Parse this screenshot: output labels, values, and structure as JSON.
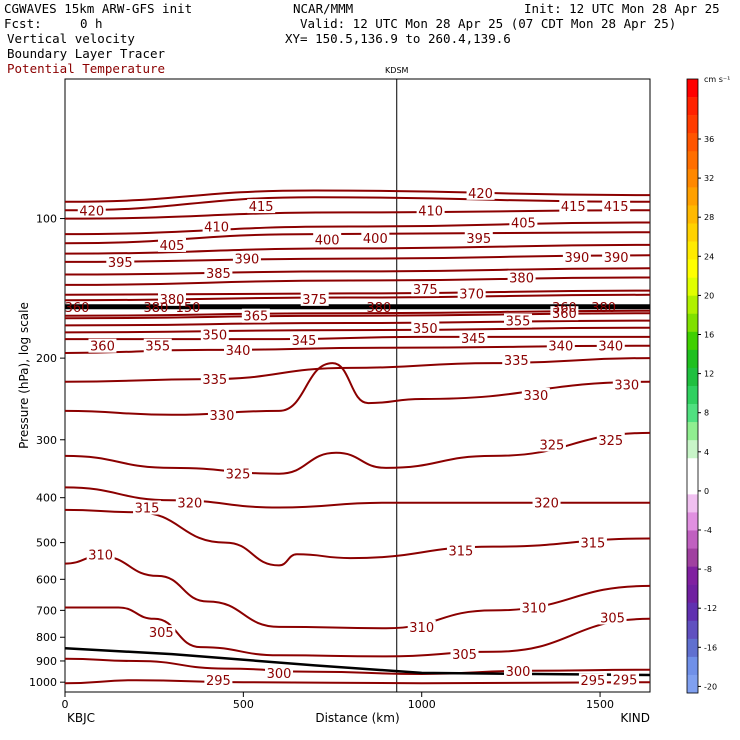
{
  "header": {
    "model": "CGWAVES 15km ARW-GFS init",
    "org": "NCAR/MMM",
    "init": "Init: 12 UTC Mon 28 Apr 25",
    "fcst_label": "Fcst:",
    "fcst_value": "0 h",
    "valid": "Valid: 12 UTC Mon 28 Apr 25 (07 CDT Mon 28 Apr 25)",
    "field1": "Vertical velocity",
    "field2": "Boundary Layer Tracer",
    "field3": "Potential Temperature",
    "xy": "XY= 150.5,136.9 to 260.4,139.6",
    "field3_color": "#8b0000"
  },
  "chart_data": {
    "type": "cross-section",
    "title": "",
    "xlabel": "Distance (km)",
    "ylabel": "Pressure (hPa), log scale",
    "xlim": [
      0,
      1640
    ],
    "ylim": [
      1050,
      50
    ],
    "y_scale": "log",
    "x_ticks": [
      0,
      500,
      1000,
      1500
    ],
    "y_ticks": [
      100,
      200,
      300,
      400,
      500,
      600,
      700,
      800,
      900,
      1000
    ],
    "station_start": "KBJC",
    "station_end": "KIND",
    "station_marker": {
      "name": "KDSM",
      "x": 930
    },
    "contour_color": "#8b0000",
    "contours": [
      {
        "level": 295,
        "labels": [
          [
            430,
            990
          ],
          [
            1480,
            990
          ],
          [
            1570,
            988
          ]
        ],
        "points": [
          [
            0,
            1005
          ],
          [
            200,
            990
          ],
          [
            500,
            1000
          ],
          [
            1000,
            1005
          ],
          [
            1640,
            1000
          ]
        ]
      },
      {
        "level": 300,
        "labels": [
          [
            600,
            955
          ],
          [
            1270,
            945
          ]
        ],
        "points": [
          [
            0,
            890
          ],
          [
            200,
            900
          ],
          [
            450,
            935
          ],
          [
            700,
            950
          ],
          [
            1000,
            960
          ],
          [
            1300,
            945
          ],
          [
            1640,
            940
          ]
        ]
      },
      {
        "level": 305,
        "labels": [
          [
            270,
            780
          ],
          [
            1120,
            870
          ],
          [
            1535,
            725
          ]
        ],
        "points": [
          [
            0,
            690
          ],
          [
            150,
            690
          ],
          [
            250,
            730
          ],
          [
            380,
            840
          ],
          [
            600,
            875
          ],
          [
            900,
            880
          ],
          [
            1200,
            860
          ],
          [
            1640,
            730
          ]
        ]
      },
      {
        "level": 310,
        "labels": [
          [
            100,
            530
          ],
          [
            1000,
            760
          ],
          [
            1315,
            690
          ]
        ],
        "points": [
          [
            0,
            555
          ],
          [
            100,
            535
          ],
          [
            260,
            590
          ],
          [
            400,
            670
          ],
          [
            600,
            760
          ],
          [
            900,
            765
          ],
          [
            1200,
            700
          ],
          [
            1640,
            620
          ]
        ]
      },
      {
        "level": 315,
        "labels": [
          [
            230,
            420
          ],
          [
            1110,
            520
          ],
          [
            1480,
            500
          ]
        ],
        "points": [
          [
            0,
            425
          ],
          [
            200,
            430
          ],
          [
            450,
            500
          ],
          [
            600,
            560
          ],
          [
            650,
            530
          ],
          [
            800,
            540
          ],
          [
            1200,
            510
          ],
          [
            1640,
            490
          ]
        ]
      },
      {
        "level": 320,
        "labels": [
          [
            350,
            410
          ],
          [
            1350,
            410
          ]
        ],
        "points": [
          [
            0,
            380
          ],
          [
            300,
            405
          ],
          [
            600,
            420
          ],
          [
            900,
            410
          ],
          [
            1640,
            410
          ]
        ]
      },
      {
        "level": 325,
        "labels": [
          [
            485,
            355
          ],
          [
            1365,
            307
          ],
          [
            1530,
            300
          ]
        ],
        "points": [
          [
            0,
            325
          ],
          [
            300,
            345
          ],
          [
            600,
            355
          ],
          [
            760,
            320
          ],
          [
            900,
            345
          ],
          [
            1200,
            325
          ],
          [
            1640,
            290
          ]
        ]
      },
      {
        "level": 330,
        "labels": [
          [
            440,
            265
          ],
          [
            1320,
            240
          ],
          [
            1575,
            228
          ]
        ],
        "points": [
          [
            0,
            260
          ],
          [
            300,
            265
          ],
          [
            600,
            260
          ],
          [
            750,
            205
          ],
          [
            850,
            250
          ],
          [
            1000,
            245
          ],
          [
            1640,
            225
          ]
        ]
      },
      {
        "level": 335,
        "labels": [
          [
            420,
            222
          ],
          [
            1265,
            202
          ]
        ],
        "points": [
          [
            0,
            225
          ],
          [
            400,
            222
          ],
          [
            800,
            210
          ],
          [
            1200,
            205
          ],
          [
            1640,
            200
          ]
        ]
      },
      {
        "level": 340,
        "labels": [
          [
            485,
            192
          ],
          [
            1390,
            188
          ],
          [
            1530,
            188
          ]
        ],
        "points": [
          [
            0,
            195
          ],
          [
            400,
            192
          ],
          [
            900,
            190
          ],
          [
            1640,
            188
          ]
        ]
      },
      {
        "level": 345,
        "labels": [
          [
            670,
            183
          ],
          [
            1145,
            181
          ]
        ],
        "points": [
          [
            0,
            182
          ],
          [
            600,
            182
          ],
          [
            1000,
            180
          ],
          [
            1640,
            180
          ]
        ]
      },
      {
        "level": 350,
        "labels": [
          [
            420,
            178
          ],
          [
            1010,
            172
          ]
        ],
        "points": [
          [
            0,
            176
          ],
          [
            800,
            174
          ],
          [
            1640,
            172
          ]
        ]
      },
      {
        "level": 355,
        "labels": [
          [
            260,
            188
          ],
          [
            1270,
            166
          ]
        ],
        "points": [
          [
            0,
            170
          ],
          [
            800,
            168
          ],
          [
            1640,
            166
          ]
        ]
      },
      {
        "level": 360,
        "labels": [
          [
            105,
            188
          ],
          [
            1400,
            160
          ]
        ],
        "points": [
          [
            0,
            164
          ],
          [
            800,
            162
          ],
          [
            1640,
            160
          ]
        ]
      },
      {
        "level": 365,
        "labels": [
          [
            535,
            162
          ]
        ],
        "points": [
          [
            0,
            162
          ],
          [
            800,
            160
          ],
          [
            1640,
            158
          ]
        ]
      },
      {
        "level": 370,
        "labels": [
          [
            1140,
            145
          ]
        ],
        "points": [
          [
            0,
            150
          ],
          [
            800,
            148
          ],
          [
            1640,
            146
          ]
        ]
      },
      {
        "level": 375,
        "labels": [
          [
            700,
            149
          ],
          [
            1010,
            142
          ]
        ],
        "points": [
          [
            0,
            146
          ],
          [
            800,
            145
          ],
          [
            1640,
            143
          ]
        ]
      },
      {
        "level": 380,
        "labels": [
          [
            300,
            149
          ],
          [
            1280,
            134
          ]
        ],
        "points": [
          [
            0,
            139
          ],
          [
            800,
            136
          ],
          [
            1640,
            134
          ]
        ]
      },
      {
        "level": 385,
        "labels": [
          [
            430,
            131
          ]
        ],
        "points": [
          [
            0,
            132
          ],
          [
            800,
            130
          ],
          [
            1640,
            128
          ]
        ]
      },
      {
        "level": 390,
        "labels": [
          [
            510,
            122
          ],
          [
            1435,
            121
          ],
          [
            1545,
            121
          ]
        ],
        "points": [
          [
            0,
            124
          ],
          [
            800,
            122
          ],
          [
            1640,
            120
          ]
        ]
      },
      {
        "level": 395,
        "labels": [
          [
            155,
            124
          ],
          [
            1160,
            110
          ]
        ],
        "points": [
          [
            0,
            119
          ],
          [
            800,
            116
          ],
          [
            1640,
            114
          ]
        ]
      },
      {
        "level": 400,
        "labels": [
          [
            735,
            111
          ],
          [
            870,
            110
          ]
        ],
        "points": [
          [
            0,
            113
          ],
          [
            700,
            108
          ],
          [
            1640,
            107
          ]
        ]
      },
      {
        "level": 405,
        "labels": [
          [
            300,
            114
          ],
          [
            1285,
            102
          ]
        ],
        "points": [
          [
            0,
            108
          ],
          [
            800,
            104
          ],
          [
            1640,
            102
          ]
        ]
      },
      {
        "level": 410,
        "labels": [
          [
            425,
            104
          ],
          [
            1025,
            96
          ]
        ],
        "points": [
          [
            0,
            100
          ],
          [
            800,
            97
          ],
          [
            1640,
            96
          ]
        ]
      },
      {
        "level": 415,
        "labels": [
          [
            550,
            94
          ],
          [
            1425,
            94
          ],
          [
            1545,
            94
          ]
        ],
        "points": [
          [
            0,
            96
          ],
          [
            700,
            90
          ],
          [
            1640,
            92
          ]
        ]
      },
      {
        "level": 420,
        "labels": [
          [
            75,
            96
          ],
          [
            1165,
            88
          ]
        ],
        "points": [
          [
            0,
            92
          ],
          [
            700,
            87
          ],
          [
            1640,
            89
          ]
        ]
      }
    ],
    "tropopause": {
      "pressure": 155,
      "labels": [
        [
          0,
          155
        ],
        [
          255,
          155
        ],
        [
          345,
          155
        ],
        [
          880,
          155
        ],
        [
          1400,
          155
        ],
        [
          1510,
          155
        ]
      ],
      "label_text": [
        "360",
        "380",
        "150",
        "380",
        "360",
        "380"
      ]
    },
    "terrain": [
      [
        0,
        845
      ],
      [
        300,
        870
      ],
      [
        700,
        920
      ],
      [
        1000,
        955
      ],
      [
        1640,
        965
      ]
    ],
    "colorbar": {
      "unit": "cm s⁻¹",
      "labels": [
        "36",
        "32",
        "28",
        "24",
        "20",
        "16",
        "12",
        "8",
        "4",
        "0",
        "-4",
        "-8",
        "-12",
        "-16",
        "-20"
      ],
      "colors": [
        "#ff0000",
        "#ff2200",
        "#ff3c00",
        "#ff5500",
        "#ff6e00",
        "#ff8800",
        "#ffa000",
        "#ffb900",
        "#ffd200",
        "#ffeb00",
        "#ffff00",
        "#e0ff00",
        "#b0f000",
        "#80e000",
        "#40d000",
        "#20c020",
        "#20c040",
        "#30d060",
        "#50e080",
        "#90ee90",
        "#c8f5c8",
        "#ffffff",
        "#ffffff",
        "#f0c0f0",
        "#e090e0",
        "#c060c0",
        "#a040a0",
        "#8020a0",
        "#7020a0",
        "#6030b0",
        "#6050c0",
        "#6070d0",
        "#7090e8",
        "#80a0f0"
      ]
    }
  }
}
